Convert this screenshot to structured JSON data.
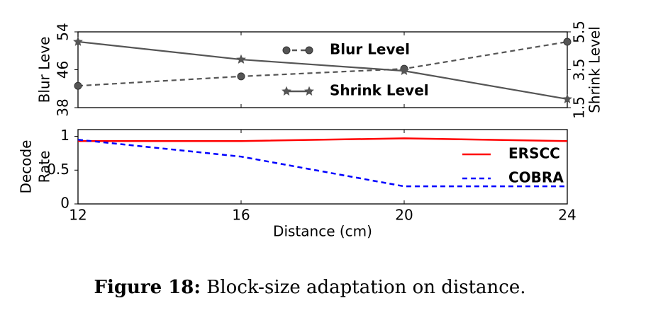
{
  "chart_data": [
    {
      "type": "line",
      "x": [
        12,
        16,
        20,
        24
      ],
      "xlim": [
        12,
        24
      ],
      "ylabel": "Blur Leve",
      "y2label": "Shrink Level",
      "ylim": [
        38,
        54
      ],
      "yticks": [
        38,
        46,
        54
      ],
      "y2lim": [
        1.5,
        5.5
      ],
      "y2ticks": [
        1.5,
        3.5,
        5.5
      ],
      "legend": "center",
      "series": [
        {
          "name": "Blur Level",
          "color": "#555555",
          "dash": true,
          "marker": "circle",
          "values": [
            42.6,
            44.6,
            46.2,
            51.9
          ]
        },
        {
          "name": "Shrink Level",
          "color": "#555555",
          "dash": false,
          "marker": "star",
          "axis": "y2",
          "values": [
            4.98,
            4.04,
            3.44,
            1.95
          ]
        }
      ]
    },
    {
      "type": "line",
      "x": [
        12,
        16,
        20,
        24
      ],
      "xlim": [
        12,
        24
      ],
      "xticks": [
        12,
        16,
        20,
        24
      ],
      "xlabel": "Distance (cm)",
      "ylabel": [
        "Decode",
        "Rate"
      ],
      "ylim": [
        0,
        1.1
      ],
      "yticks": [
        0,
        0.5,
        1
      ],
      "legend": "right",
      "series": [
        {
          "name": "ERSCC",
          "color": "#ff0000",
          "dash": false,
          "values": [
            0.93,
            0.93,
            0.97,
            0.93
          ]
        },
        {
          "name": "COBRA",
          "color": "#0000ff",
          "dash": true,
          "values": [
            0.95,
            0.7,
            0.26,
            0.26
          ]
        }
      ]
    }
  ],
  "caption": {
    "label": "Figure 18:",
    "text": "Block-size adaptation on distance."
  }
}
